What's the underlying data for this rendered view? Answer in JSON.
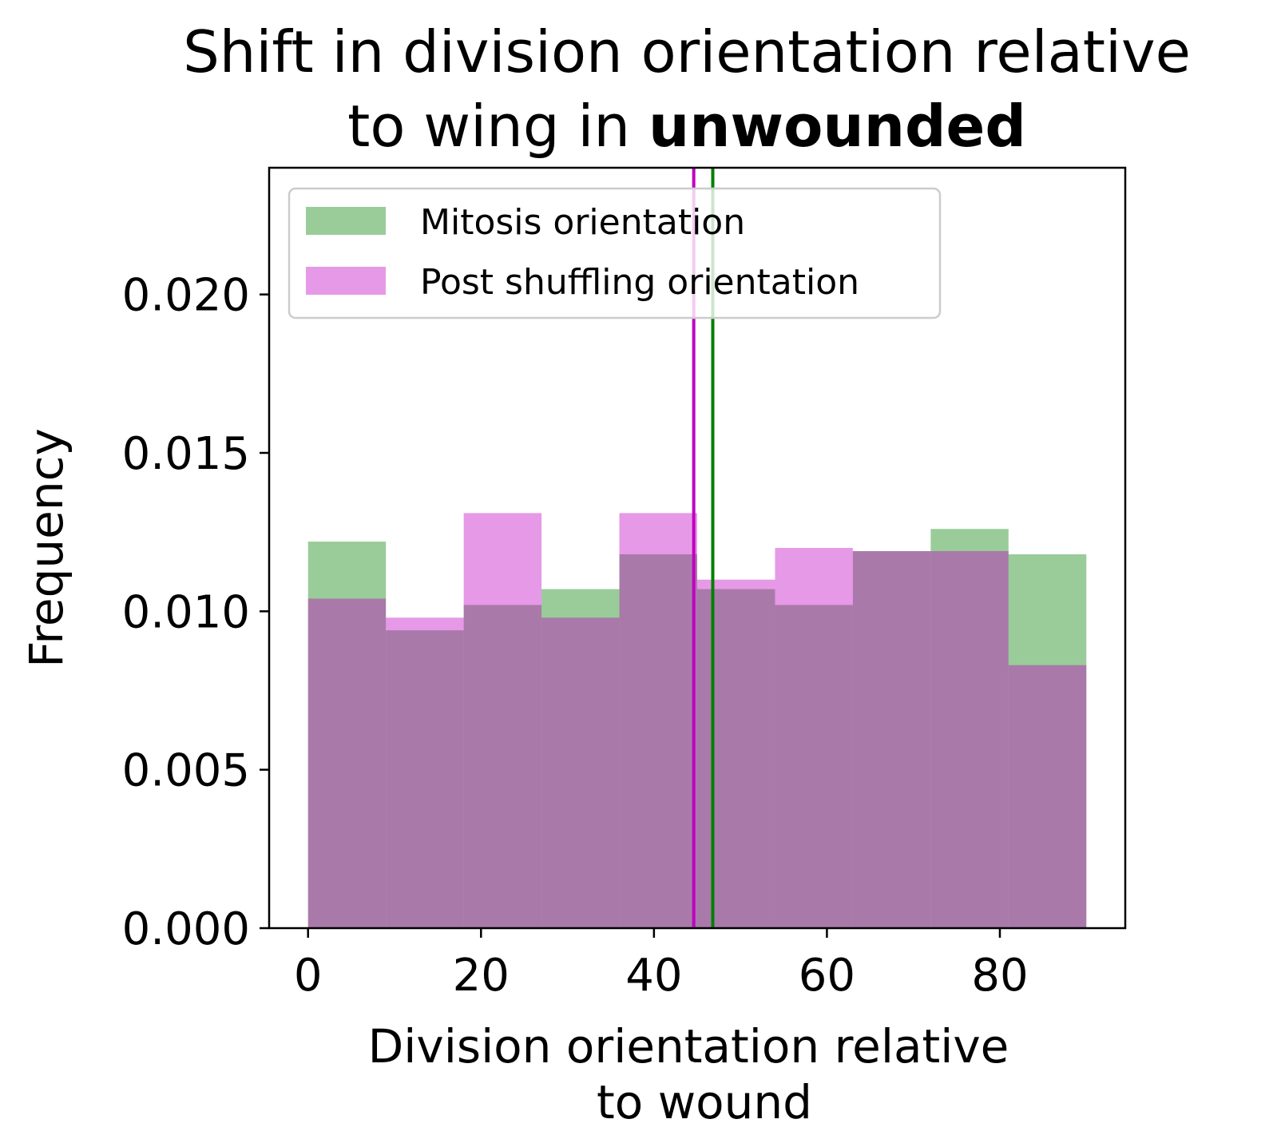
{
  "chart_data": {
    "type": "bar",
    "title_line1": "Shift in division orientation relative",
    "title_line2_prefix": "to wing in ",
    "title_line2_bold": "unwounded",
    "xlabel_line1": "Division orientation relative",
    "xlabel_line2": "to wound",
    "ylabel": "Frequency",
    "xlim": [
      -4.5,
      94.5
    ],
    "ylim": [
      0,
      0.024
    ],
    "x_ticks": [
      0,
      20,
      40,
      60,
      80
    ],
    "x_tick_labels": [
      "0",
      "20",
      "40",
      "60",
      "80"
    ],
    "y_ticks": [
      0,
      0.005,
      0.01,
      0.015,
      0.02
    ],
    "y_tick_labels": [
      "0.000",
      "0.005",
      "0.010",
      "0.015",
      "0.020"
    ],
    "bin_edges": [
      0,
      9,
      18,
      27,
      36,
      45,
      54,
      63,
      72,
      81,
      90
    ],
    "series": [
      {
        "name": "Mitosis orientation",
        "color": "#008000",
        "alpha": 0.4,
        "values": [
          0.0122,
          0.0094,
          0.0102,
          0.0107,
          0.0118,
          0.0107,
          0.0102,
          0.0119,
          0.0126,
          0.0118
        ]
      },
      {
        "name": "Post shuffling orientation",
        "color": "#c000c0",
        "alpha": 0.4,
        "values": [
          0.0104,
          0.0098,
          0.0131,
          0.0098,
          0.0131,
          0.011,
          0.012,
          0.0119,
          0.0119,
          0.0083
        ]
      }
    ],
    "vlines": [
      {
        "x": 44.6,
        "color": "#bf00bf"
      },
      {
        "x": 46.8,
        "color": "#008000"
      }
    ],
    "legend_position": "upper-left",
    "grid": false
  }
}
